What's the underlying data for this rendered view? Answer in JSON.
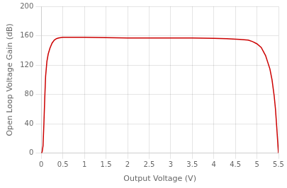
{
  "chart_data": {
    "type": "line",
    "xlabel": "Output Voltage (V)",
    "ylabel": "Open Loop Voltage Gain (dB)",
    "x": [
      0.0,
      0.02,
      0.04,
      0.06,
      0.08,
      0.1,
      0.13,
      0.16,
      0.2,
      0.25,
      0.3,
      0.35,
      0.4,
      0.45,
      0.5,
      0.6,
      0.7,
      0.8,
      1.0,
      1.5,
      2.0,
      2.5,
      3.0,
      3.5,
      4.0,
      4.3,
      4.6,
      4.8,
      4.9,
      5.0,
      5.1,
      5.2,
      5.3,
      5.35,
      5.4,
      5.43,
      5.46,
      5.49,
      5.5
    ],
    "values": [
      0,
      2,
      10,
      40,
      75,
      105,
      125,
      135,
      143,
      150,
      154,
      156,
      157,
      157.5,
      158,
      158,
      158,
      158,
      158,
      157.5,
      157,
      157,
      157,
      157,
      156.5,
      156,
      155,
      154,
      152,
      149,
      144,
      133,
      115,
      100,
      78,
      60,
      35,
      8,
      0
    ],
    "color": "#cc0000",
    "xlim": [
      0,
      5.5
    ],
    "ylim": [
      0,
      200
    ],
    "xticks": [
      0,
      0.5,
      1,
      1.5,
      2,
      2.5,
      3,
      3.5,
      4,
      4.5,
      5,
      5.5
    ],
    "yticks": [
      0,
      40,
      80,
      120,
      160,
      200
    ],
    "grid": true
  }
}
